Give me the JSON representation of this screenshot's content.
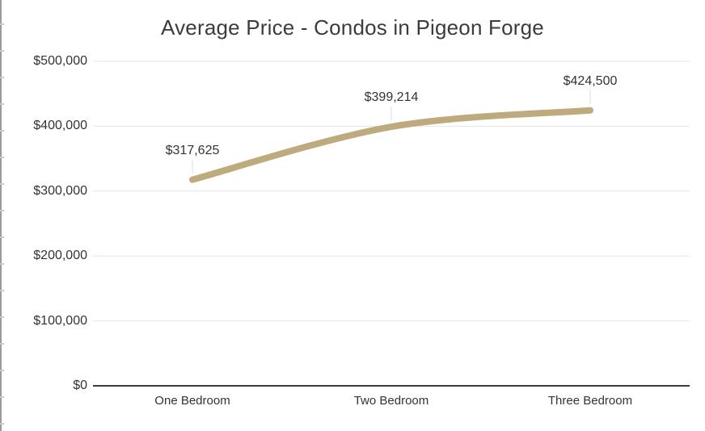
{
  "chart_data": {
    "type": "line",
    "title": "Average Price - Condos in Pigeon Forge",
    "categories": [
      "One Bedroom",
      "Two Bedroom",
      "Three Bedroom"
    ],
    "values": [
      317625,
      399214,
      424500
    ],
    "data_labels": [
      "$317,625",
      "$399,214",
      "$424,500"
    ],
    "y_axis": {
      "range": [
        0,
        500000
      ],
      "ticks": [
        {
          "value": 500000,
          "label": "$500,000"
        },
        {
          "value": 400000,
          "label": "$400,000"
        },
        {
          "value": 300000,
          "label": "$300,000"
        },
        {
          "value": 200000,
          "label": "$200,000"
        },
        {
          "value": 100000,
          "label": "$100,000"
        },
        {
          "value": 0,
          "label": "$0"
        }
      ]
    },
    "grid": true,
    "legend": "none",
    "line_smooth": true,
    "line_width": 8,
    "colors": {
      "series": "#BDAB7E",
      "gridline": "#E6E6E6",
      "axis_line": "#3A3A3A",
      "text": "#333333",
      "leader_line": "#DCDCDC",
      "background": "#FFFFFF"
    }
  }
}
